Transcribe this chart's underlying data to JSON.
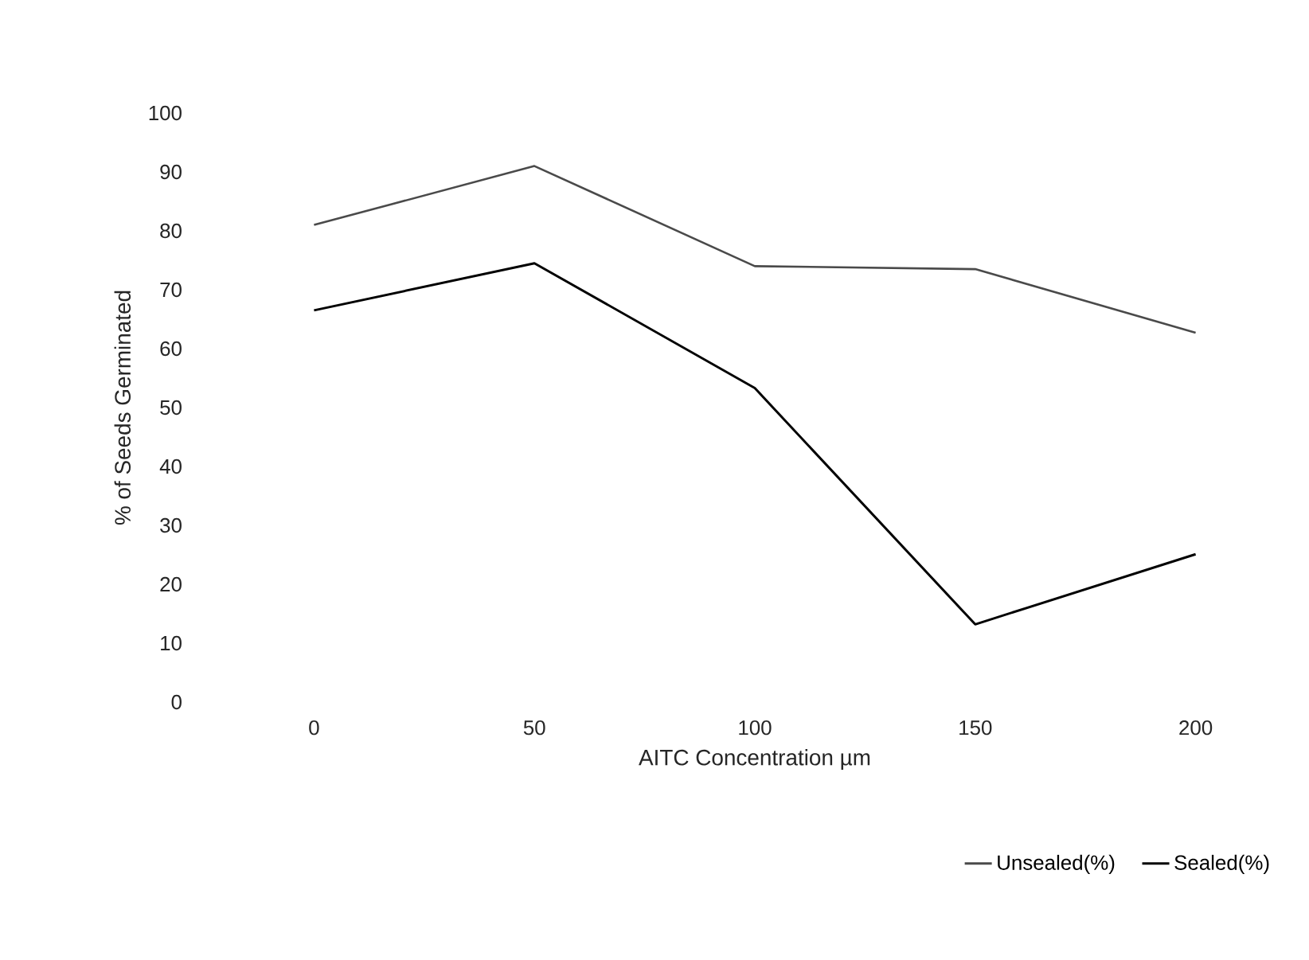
{
  "chart_data": {
    "type": "line",
    "xlabel": "AITC Concentration µm",
    "ylabel": "% of Seeds Germinated",
    "categories": [
      "0",
      "50",
      "100",
      "150",
      "200"
    ],
    "series": [
      {
        "name": "Unsealed(%)",
        "color": "#4a4a4a",
        "values": [
          81,
          91,
          74,
          73.5,
          62.7
        ]
      },
      {
        "name": "Sealed(%)",
        "color": "#000000",
        "values": [
          66.5,
          74.5,
          53.3,
          13.2,
          25.1
        ]
      }
    ],
    "ylim": [
      0,
      100
    ],
    "yticks": [
      0,
      10,
      20,
      30,
      40,
      50,
      60,
      70,
      80,
      90,
      100
    ],
    "grid": false,
    "legend": "bottom right",
    "line_style": "solid",
    "marker": "none"
  }
}
